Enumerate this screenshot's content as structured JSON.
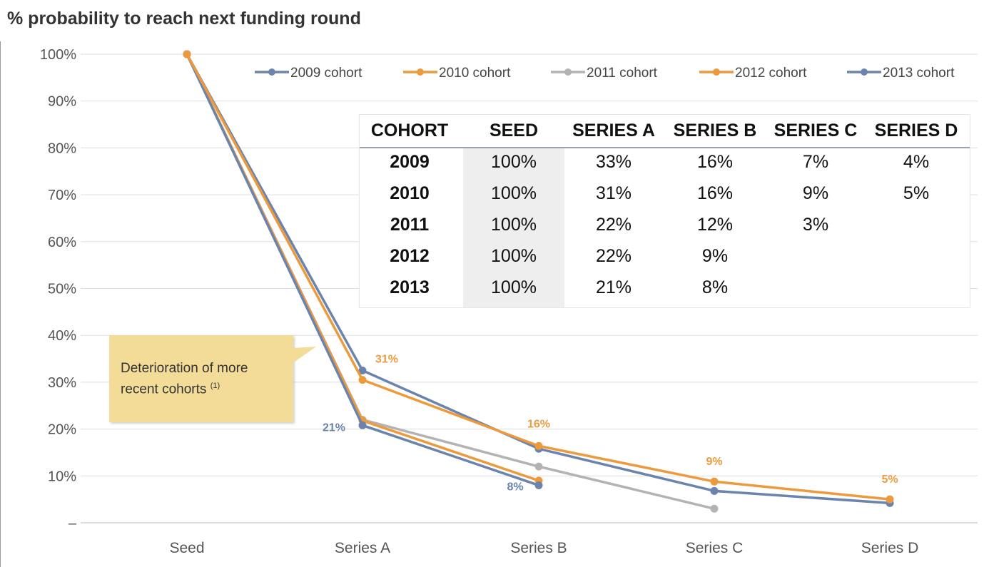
{
  "title": "% probability to reach next funding round",
  "chart_data": {
    "type": "line",
    "categories": [
      "Seed",
      "Series A",
      "Series B",
      "Series C",
      "Series D"
    ],
    "y_ticks": [
      "–",
      "10%",
      "20%",
      "30%",
      "40%",
      "50%",
      "60%",
      "70%",
      "80%",
      "90%",
      "100%"
    ],
    "ylim": [
      0,
      100
    ],
    "grid": true,
    "legend_position": "top-right",
    "series": [
      {
        "name": "2009 cohort",
        "color": "#6b84ad",
        "values": [
          100,
          32.5,
          15.8,
          6.8,
          4.2
        ]
      },
      {
        "name": "2010 cohort",
        "color": "#ed9a3d",
        "values": [
          100,
          30.5,
          16.4,
          8.8,
          5.0
        ]
      },
      {
        "name": "2011 cohort",
        "color": "#b3b3b3",
        "values": [
          100,
          22.0,
          12.0,
          3.0,
          null
        ]
      },
      {
        "name": "2012 cohort",
        "color": "#ed9a3d",
        "values": [
          100,
          21.8,
          9.0,
          null,
          null
        ]
      },
      {
        "name": "2013 cohort",
        "color": "#6b84ad",
        "values": [
          100,
          20.8,
          8.0,
          null,
          null
        ]
      }
    ],
    "annotations": [
      {
        "text": "31%",
        "category": "Series A",
        "value": 30.5,
        "color": "#ed9a3d"
      },
      {
        "text": "21%",
        "category": "Series A",
        "value": 20.8,
        "color": "#6b84ad"
      },
      {
        "text": "16%",
        "category": "Series B",
        "value": 16.4,
        "color": "#ed9a3d"
      },
      {
        "text": "8%",
        "category": "Series B",
        "value": 8.0,
        "color": "#6b84ad"
      },
      {
        "text": "9%",
        "category": "Series C",
        "value": 8.8,
        "color": "#ed9a3d"
      },
      {
        "text": "5%",
        "category": "Series D",
        "value": 5.0,
        "color": "#ed9a3d"
      }
    ]
  },
  "table": {
    "headers": [
      "COHORT",
      "SEED",
      "SERIES A",
      "SERIES B",
      "SERIES C",
      "SERIES D"
    ],
    "rows": [
      [
        "2009",
        "100%",
        "33%",
        "16%",
        "7%",
        "4%"
      ],
      [
        "2010",
        "100%",
        "31%",
        "16%",
        "9%",
        "5%"
      ],
      [
        "2011",
        "100%",
        "22%",
        "12%",
        "3%",
        ""
      ],
      [
        "2012",
        "100%",
        "22%",
        "9%",
        "",
        ""
      ],
      [
        "2013",
        "100%",
        "21%",
        "8%",
        "",
        ""
      ]
    ]
  },
  "callout": {
    "text": "Deterioration of more recent cohorts",
    "note": "(1)",
    "background": "#f3dc98"
  }
}
